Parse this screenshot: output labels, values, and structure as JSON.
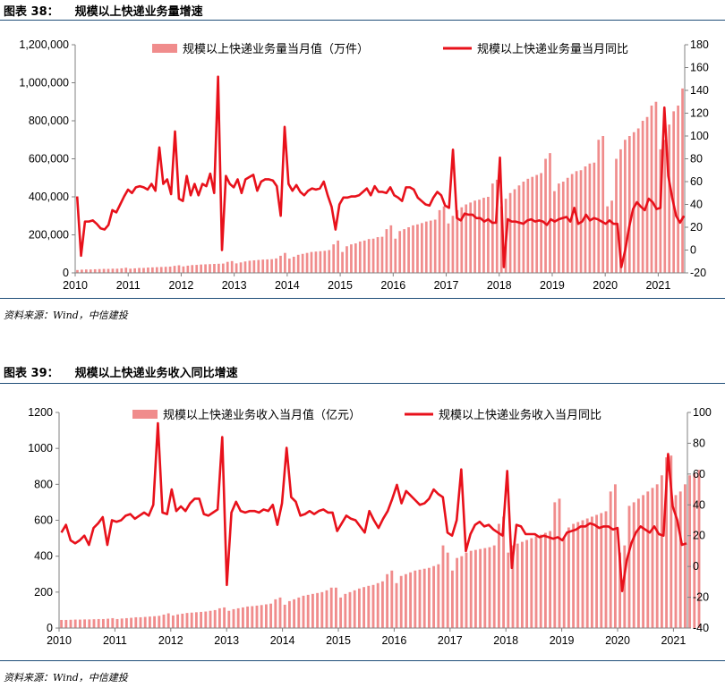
{
  "figures": [
    {
      "number": "图表 38：",
      "title": "规模以上快递业务量增速",
      "source": "资料来源：Wind，中信建投",
      "chart_data": {
        "type": "bar+line",
        "legend_bar": "规模以上快递业务量当月值（万件）",
        "legend_line": "规模以上快递业务量当月同比",
        "legend_position": "top",
        "grid": false,
        "x_ticks": [
          "2010",
          "2011",
          "2012",
          "2013",
          "2014",
          "2015",
          "2016",
          "2017",
          "2018",
          "2019",
          "2020",
          "2021"
        ],
        "x_start": 2010.0,
        "x_end": 2021.5,
        "y_left": {
          "min": 0,
          "max": 1200000,
          "ticks": [
            "0",
            "200,000",
            "400,000",
            "600,000",
            "800,000",
            "1,000,000",
            "1,200,000"
          ]
        },
        "y_right": {
          "min": -20,
          "max": 180,
          "ticks": [
            "-20",
            "0",
            "20",
            "40",
            "60",
            "80",
            "100",
            "120",
            "140",
            "160",
            "180"
          ]
        },
        "bar_color": "#f08c8c",
        "line_color": "#e8111b",
        "bar_values": [
          15000,
          17000,
          18000,
          18000,
          19000,
          20000,
          21000,
          21000,
          22000,
          22000,
          24000,
          27000,
          22000,
          24000,
          26000,
          26000,
          28000,
          29000,
          30000,
          31000,
          32000,
          33000,
          37000,
          40000,
          34000,
          38000,
          41000,
          42000,
          44000,
          45000,
          46000,
          47000,
          48000,
          49000,
          58000,
          62000,
          50000,
          55000,
          60000,
          64000,
          66000,
          68000,
          70000,
          71000,
          72000,
          76000,
          90000,
          105000,
          75000,
          85000,
          95000,
          100000,
          105000,
          110000,
          112000,
          114000,
          116000,
          120000,
          150000,
          170000,
          110000,
          140000,
          150000,
          155000,
          165000,
          170000,
          178000,
          180000,
          188000,
          190000,
          230000,
          250000,
          180000,
          220000,
          230000,
          240000,
          250000,
          255000,
          262000,
          270000,
          275000,
          280000,
          330000,
          350000,
          260000,
          300000,
          330000,
          345000,
          360000,
          370000,
          380000,
          385000,
          395000,
          400000,
          470000,
          490000,
          350000,
          390000,
          420000,
          440000,
          460000,
          480000,
          495000,
          505000,
          515000,
          525000,
          600000,
          630000,
          430000,
          470000,
          480000,
          500000,
          520000,
          535000,
          540000,
          560000,
          575000,
          580000,
          700000,
          720000,
          350000,
          380000,
          600000,
          650000,
          700000,
          720000,
          740000,
          760000,
          800000,
          820000,
          880000,
          900000,
          650000,
          700000,
          780000,
          850000,
          880000,
          970000
        ],
        "line_values": [
          47,
          -5,
          25,
          25,
          26,
          23,
          19,
          18,
          22,
          35,
          33,
          40,
          47,
          53,
          50,
          55,
          56,
          55,
          53,
          58,
          52,
          90,
          58,
          62,
          49,
          104,
          45,
          43,
          65,
          48,
          58,
          48,
          58,
          56,
          67,
          50,
          152,
          0,
          65,
          58,
          55,
          62,
          50,
          62,
          64,
          66,
          52,
          60,
          62,
          62,
          61,
          56,
          30,
          108,
          58,
          52,
          57,
          51,
          48,
          52,
          54,
          53,
          54,
          60,
          48,
          38,
          18,
          40,
          46,
          46,
          47,
          47,
          48,
          51,
          54,
          48,
          56,
          51,
          51,
          50,
          55,
          48,
          46,
          43,
          55,
          55,
          53,
          46,
          43,
          40,
          39,
          46,
          51,
          48,
          39,
          37,
          88,
          28,
          26,
          32,
          31,
          31,
          28,
          28,
          25,
          27,
          24,
          24,
          81,
          -15,
          27,
          25,
          25,
          24,
          23,
          26,
          27,
          25,
          26,
          25,
          22,
          27,
          25,
          27,
          28,
          29,
          25,
          37,
          23,
          25,
          31,
          26,
          28,
          27,
          25,
          23,
          26,
          23,
          23,
          -15,
          0,
          20,
          36,
          42,
          38,
          35,
          45,
          42,
          36,
          37,
          125,
          65,
          46,
          30,
          24,
          30
        ]
      }
    },
    {
      "number": "图表 39：",
      "title": "规模以上快递业务收入同比增速",
      "source": "资料来源：Wind，中信建投",
      "chart_data": {
        "type": "bar+line",
        "legend_bar": "规模以上快递业务收入当月值（亿元）",
        "legend_line": "规模以上快递业务收入当月同比",
        "legend_position": "top",
        "grid": false,
        "x_ticks": [
          "2010",
          "2011",
          "2012",
          "2013",
          "2014",
          "2015",
          "2016",
          "2017",
          "2018",
          "2019",
          "2020",
          "2021"
        ],
        "x_start": 2010.0,
        "x_end": 2021.25,
        "y_left": {
          "min": 0,
          "max": 1200,
          "ticks": [
            "0",
            "200",
            "400",
            "600",
            "800",
            "1000",
            "1200"
          ]
        },
        "y_right": {
          "min": -40,
          "max": 100,
          "ticks": [
            "-40",
            "-20",
            "0",
            "20",
            "40",
            "60",
            "80",
            "100"
          ]
        },
        "bar_color": "#f08c8c",
        "line_color": "#e8111b",
        "bar_values": [
          45,
          45,
          46,
          47,
          47,
          48,
          48,
          49,
          50,
          50,
          52,
          55,
          50,
          53,
          55,
          57,
          60,
          60,
          62,
          64,
          66,
          68,
          75,
          82,
          70,
          76,
          80,
          84,
          86,
          88,
          90,
          92,
          96,
          100,
          110,
          115,
          96,
          105,
          110,
          115,
          120,
          122,
          125,
          128,
          132,
          136,
          160,
          170,
          130,
          150,
          160,
          170,
          180,
          185,
          190,
          195,
          200,
          210,
          225,
          225,
          170,
          190,
          200,
          210,
          220,
          228,
          235,
          240,
          250,
          260,
          300,
          320,
          250,
          290,
          300,
          310,
          320,
          325,
          330,
          335,
          345,
          355,
          460,
          420,
          320,
          390,
          400,
          420,
          430,
          435,
          440,
          445,
          450,
          460,
          580,
          620,
          420,
          460,
          470,
          480,
          490,
          500,
          510,
          520,
          530,
          540,
          700,
          720,
          500,
          560,
          580,
          590,
          600,
          610,
          620,
          630,
          640,
          650,
          760,
          800,
          420,
          460,
          680,
          700,
          720,
          740,
          760,
          780,
          800,
          850,
          950,
          960,
          740,
          760,
          800,
          850,
          860,
          880
        ],
        "line_values": [
          22,
          27,
          17,
          15,
          17,
          20,
          14,
          25,
          28,
          32,
          14,
          30,
          29,
          30,
          33,
          34,
          31,
          33,
          35,
          33,
          40,
          93,
          35,
          34,
          50,
          36,
          39,
          36,
          41,
          44,
          44,
          34,
          33,
          35,
          37,
          84,
          -12,
          35,
          42,
          36,
          35,
          36,
          36,
          35,
          37,
          36,
          40,
          27,
          41,
          77,
          45,
          42,
          33,
          34,
          36,
          34,
          36,
          37,
          35,
          35,
          23,
          28,
          33,
          31,
          30,
          26,
          22,
          36,
          30,
          25,
          31,
          36,
          44,
          53,
          41,
          49,
          46,
          43,
          40,
          41,
          44,
          50,
          47,
          45,
          22,
          20,
          30,
          63,
          10,
          21,
          27,
          29,
          26,
          27,
          24,
          22,
          20,
          62,
          -1,
          27,
          26,
          21,
          21,
          21,
          19,
          20,
          19,
          18,
          19,
          17,
          22,
          23,
          24,
          26,
          26,
          28,
          27,
          25,
          26,
          26,
          24,
          25,
          -16,
          4,
          15,
          22,
          26,
          24,
          22,
          26,
          21,
          20,
          73,
          39,
          30,
          14,
          15
        ]
      }
    }
  ]
}
